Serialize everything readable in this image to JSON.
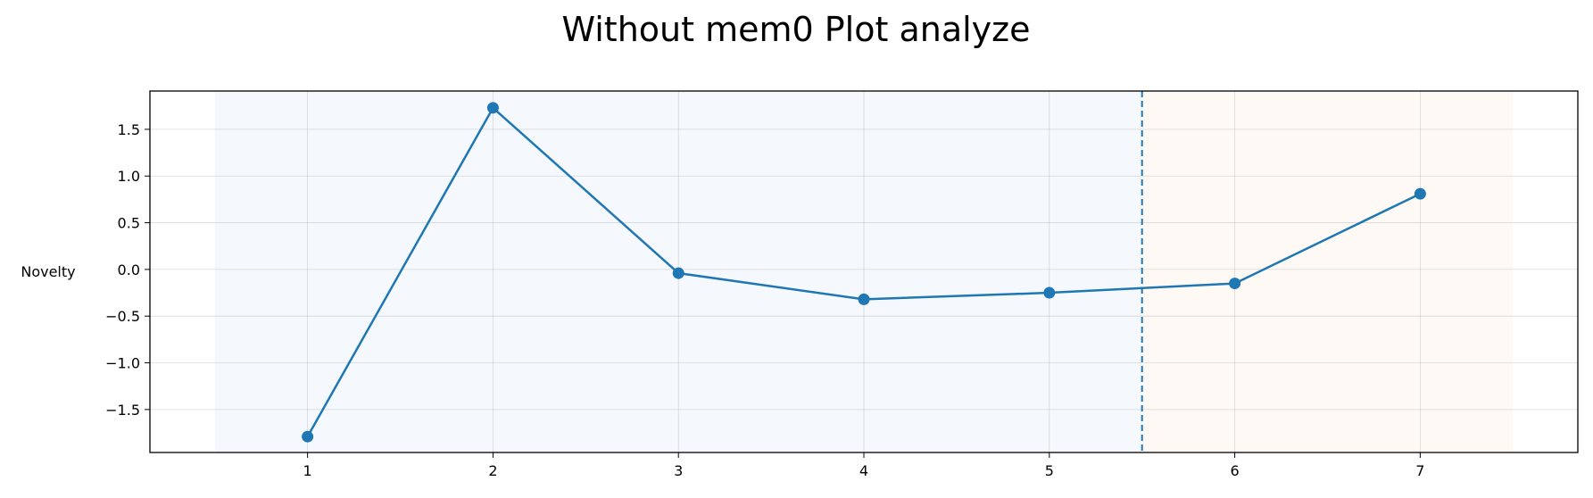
{
  "chart_data": {
    "type": "line",
    "title": "Without mem0 Plot analyze",
    "xlabel": "",
    "ylabel": "Novelty",
    "x": [
      1,
      2,
      3,
      4,
      5,
      6,
      7
    ],
    "series": [
      {
        "values": [
          -1.79,
          1.73,
          -0.04,
          -0.32,
          -0.25,
          -0.15,
          0.81
        ],
        "color": "#1f77b4"
      }
    ],
    "xticks": [
      "1",
      "2",
      "3",
      "4",
      "5",
      "6",
      "7"
    ],
    "yticks": [
      -1.5,
      -1.0,
      -0.5,
      0.0,
      0.5,
      1.0,
      1.5
    ],
    "ytick_labels": [
      "−1.5",
      "−1.0",
      "−0.5",
      "0.0",
      "0.5",
      "1.0",
      "1.5"
    ],
    "xlim": [
      0.15,
      7.85
    ],
    "ylim": [
      -1.96,
      1.91
    ],
    "grid": true,
    "regions": [
      {
        "x_range": [
          0.5,
          5.5
        ],
        "color": "#f5f8fc"
      },
      {
        "x_range": [
          5.5,
          7.5
        ],
        "color": "#fef9f4"
      }
    ],
    "vline": {
      "x": 5.5,
      "style": "dashed",
      "color": "#1f77b4"
    }
  }
}
